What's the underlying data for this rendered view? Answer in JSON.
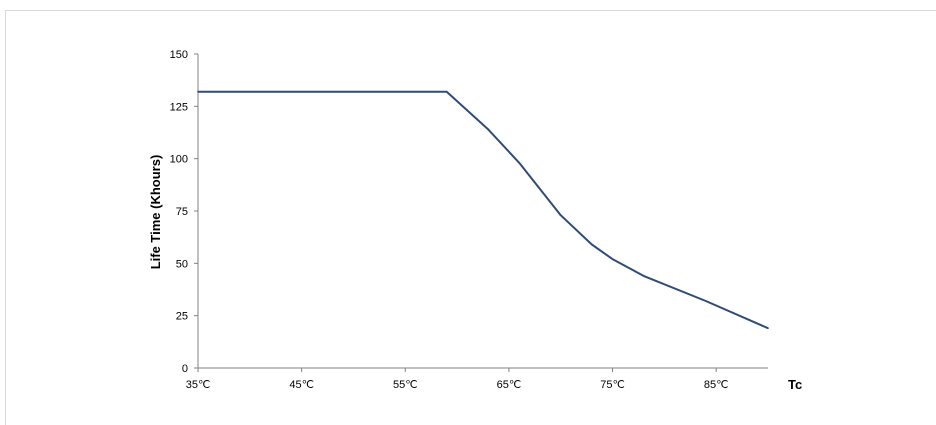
{
  "chart_data": {
    "type": "line",
    "title": "",
    "xlabel": "Tc",
    "ylabel": "Life Time (Khours)",
    "x_tick_labels": [
      "35℃",
      "45℃",
      "55℃",
      "65℃",
      "75℃",
      "85℃"
    ],
    "x_tick_values": [
      35,
      45,
      55,
      65,
      75,
      85
    ],
    "xlim": [
      35,
      90
    ],
    "ylim": [
      0,
      150
    ],
    "y_ticks": [
      0,
      25,
      50,
      75,
      100,
      125,
      150
    ],
    "grid": false,
    "legend": "none",
    "series": [
      {
        "color": "#2f4b7c",
        "points": [
          {
            "x": 35,
            "y": 132
          },
          {
            "x": 59,
            "y": 132
          },
          {
            "x": 63,
            "y": 114
          },
          {
            "x": 66,
            "y": 98
          },
          {
            "x": 70,
            "y": 73
          },
          {
            "x": 73,
            "y": 59
          },
          {
            "x": 75,
            "y": 52
          },
          {
            "x": 78,
            "y": 44
          },
          {
            "x": 84,
            "y": 32
          },
          {
            "x": 90,
            "y": 19
          }
        ]
      }
    ]
  }
}
